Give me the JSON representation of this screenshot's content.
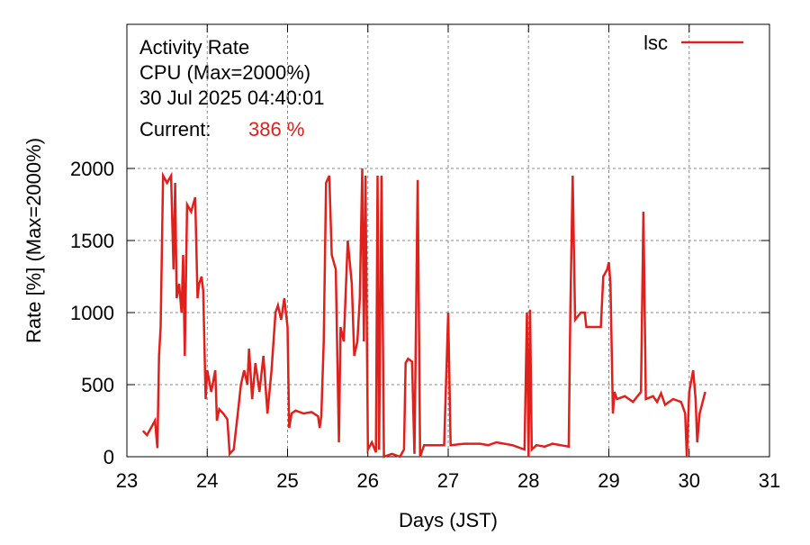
{
  "chart_data": {
    "type": "line",
    "title": "Activity Rate",
    "subtitle": "CPU (Max=2000%)",
    "timestamp": "30 Jul 2025 04:40:01",
    "current": {
      "label": "Current:",
      "value_label": "386 %"
    },
    "xlabel": "Days (JST)",
    "ylabel": "Rate [%]  (Max=2000%)",
    "xlim": [
      23,
      31
    ],
    "xticks": [
      23,
      24,
      25,
      26,
      27,
      28,
      29,
      30,
      31
    ],
    "ylim": [
      0,
      3000
    ],
    "yticks": [
      0,
      500,
      1000,
      1500,
      2000
    ],
    "grid": true,
    "legend": "upper right",
    "x": [
      23.2,
      23.25,
      23.3,
      23.35,
      23.38,
      23.4,
      23.42,
      23.45,
      23.5,
      23.55,
      23.58,
      23.6,
      23.62,
      23.65,
      23.68,
      23.7,
      23.72,
      23.75,
      23.8,
      23.85,
      23.88,
      23.9,
      23.93,
      23.95,
      23.98,
      24.0,
      24.05,
      24.1,
      24.12,
      24.15,
      24.2,
      24.25,
      24.28,
      24.33,
      24.38,
      24.42,
      24.46,
      24.5,
      24.52,
      24.56,
      24.6,
      24.65,
      24.7,
      24.75,
      24.8,
      24.85,
      24.88,
      24.92,
      24.96,
      25.0,
      25.02,
      25.05,
      25.1,
      25.2,
      25.3,
      25.38,
      25.4,
      25.42,
      25.45,
      25.48,
      25.52,
      25.55,
      25.6,
      25.62,
      25.64,
      25.66,
      25.7,
      25.75,
      25.8,
      25.83,
      25.87,
      25.9,
      25.93,
      25.95,
      25.97,
      26.0,
      26.05,
      26.1,
      26.12,
      26.14,
      26.17,
      26.2,
      26.3,
      26.4,
      26.45,
      26.47,
      26.5,
      26.55,
      26.58,
      26.62,
      26.65,
      26.7,
      26.8,
      26.95,
      27.0,
      27.03,
      27.2,
      27.4,
      27.5,
      27.6,
      27.8,
      27.95,
      27.98,
      28.0,
      28.02,
      28.04,
      28.1,
      28.2,
      28.3,
      28.4,
      28.5,
      28.52,
      28.55,
      28.58,
      28.65,
      28.7,
      28.72,
      28.8,
      28.9,
      28.93,
      28.98,
      29.0,
      29.02,
      29.05,
      29.07,
      29.1,
      29.2,
      29.3,
      29.4,
      29.43,
      29.46,
      29.55,
      29.6,
      29.65,
      29.7,
      29.8,
      29.9,
      29.95,
      29.97,
      30.0,
      30.05,
      30.08,
      30.1,
      30.13,
      30.2
    ],
    "series": [
      {
        "name": "lsc",
        "color": "#e0201b",
        "values": [
          180,
          150,
          200,
          250,
          60,
          700,
          900,
          1950,
          1900,
          1950,
          1300,
          1900,
          1100,
          1200,
          1000,
          1400,
          700,
          1750,
          1700,
          1800,
          1100,
          1200,
          1250,
          1150,
          400,
          600,
          450,
          600,
          250,
          330,
          300,
          260,
          20,
          50,
          300,
          500,
          600,
          500,
          750,
          400,
          650,
          450,
          700,
          300,
          600,
          1000,
          1050,
          950,
          1100,
          900,
          200,
          300,
          320,
          300,
          310,
          280,
          200,
          280,
          800,
          1900,
          1950,
          1400,
          1300,
          700,
          100,
          900,
          800,
          1500,
          1200,
          700,
          800,
          1100,
          2000,
          800,
          1950,
          50,
          100,
          30,
          1950,
          50,
          1950,
          0,
          20,
          0,
          50,
          650,
          680,
          660,
          20,
          1920,
          0,
          80,
          80,
          80,
          1000,
          80,
          90,
          90,
          80,
          100,
          80,
          50,
          1000,
          0,
          1020,
          50,
          80,
          70,
          90,
          80,
          70,
          1000,
          1950,
          950,
          1000,
          1000,
          900,
          900,
          900,
          1250,
          1300,
          1350,
          1200,
          300,
          450,
          400,
          420,
          380,
          450,
          1700,
          400,
          420,
          380,
          440,
          360,
          400,
          380,
          300,
          0,
          450,
          600,
          400,
          100,
          300,
          450
        ]
      }
    ]
  }
}
